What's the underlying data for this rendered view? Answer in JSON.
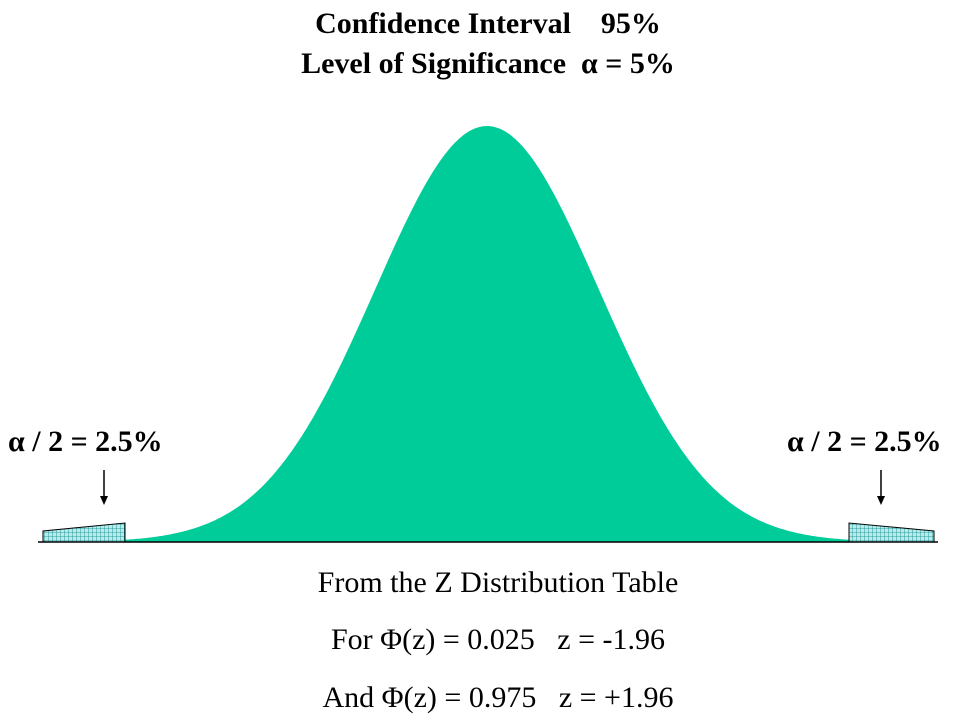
{
  "header": {
    "title_line_1": "Confidence Interval    95%",
    "title_line_2": "Level of Significance  α = 5%"
  },
  "tails": {
    "left_label": "α / 2 = 2.5%",
    "right_label": "α / 2 = 2.5%"
  },
  "notes": {
    "line_1": "From the Z Distribution Table",
    "line_2": "For Φ(z) = 0.025   z = -1.96",
    "line_3": "And Φ(z) = 0.975   z = +1.96"
  },
  "colors": {
    "center_fill": "#00cc99",
    "tail_fill": "#b8ecec",
    "tail_grid": "#0a8a8a"
  }
}
